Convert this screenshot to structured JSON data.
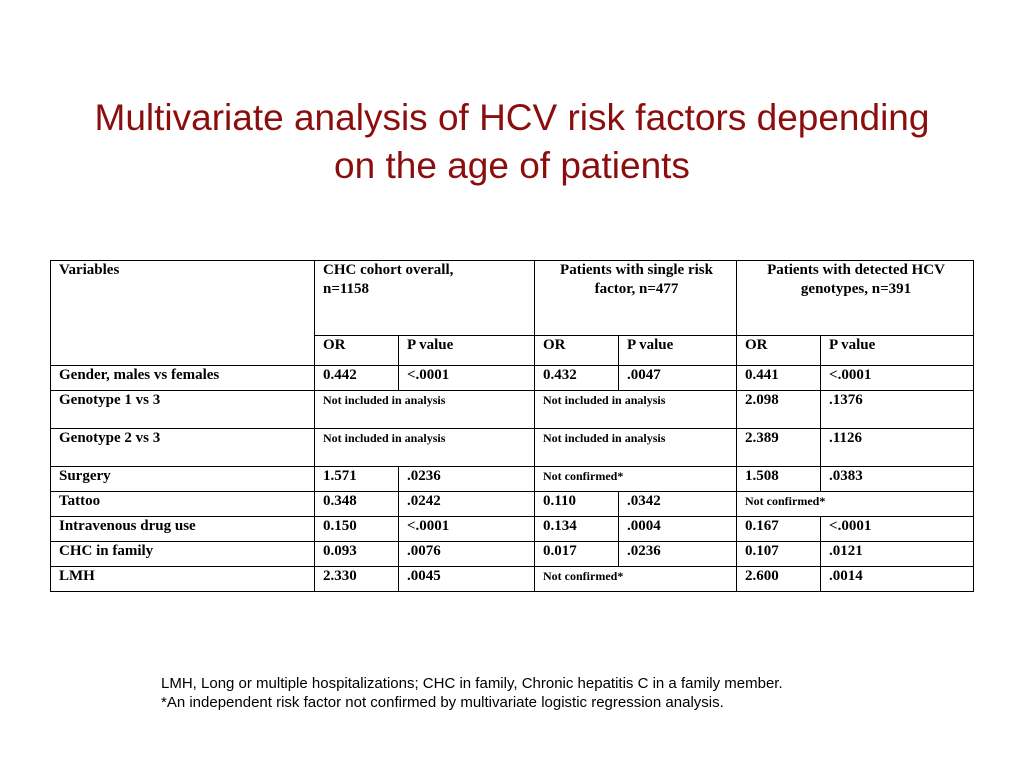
{
  "title": {
    "line1": "Multivariate analysis of HCV risk factors depending",
    "line2": "on the age of patients"
  },
  "table": {
    "headers": {
      "variables": "Variables",
      "group1": [
        "CHC cohort overall,",
        "n=1158"
      ],
      "group2": [
        "Patients with single risk",
        "factor, n=477"
      ],
      "group3": [
        "Patients with detected HCV",
        "genotypes, n=391"
      ]
    },
    "subheaders": [
      "OR",
      "P value",
      "OR",
      "P value",
      "OR",
      "P value"
    ],
    "rows": [
      {
        "label": "Gender, males vs females",
        "c1": "0.442",
        "c2": "<.0001",
        "c3": "0.432",
        "c4": ".0047",
        "c5": "0.441",
        "c6": "<.0001"
      },
      {
        "label": "Genotype 1 vs 3",
        "span1": "Not included in analysis",
        "span2": "Not included in analysis",
        "c5": "2.098",
        "c6": ".1376"
      },
      {
        "label": "Genotype 2 vs 3",
        "span1": "Not included in analysis",
        "span2": "Not included in analysis",
        "c5": "2.389",
        "c6": ".1126"
      },
      {
        "label": "Surgery",
        "c1": "1.571",
        "c2": ".0236",
        "span2": "Not confirmed*",
        "c5": "1.508",
        "c6": ".0383"
      },
      {
        "label": "Tattoo",
        "c1": "0.348",
        "c2": ".0242",
        "c3": "0.110",
        "c4": ".0342",
        "span3": "Not confirmed*"
      },
      {
        "label": "Intravenous drug use",
        "c1": "0.150",
        "c2": "<.0001",
        "c3": "0.134",
        "c4": ".0004",
        "c5": "0.167",
        "c6": "<.0001"
      },
      {
        "label": "CHC in family",
        "c1": "0.093",
        "c2": ".0076",
        "c3": "0.017",
        "c4": ".0236",
        "c5": "0.107",
        "c6": ".0121"
      },
      {
        "label": "LMH",
        "c1": "2.330",
        "c2": ".0045",
        "span2": "Not confirmed*",
        "c5": "2.600",
        "c6": ".0014"
      }
    ]
  },
  "footnotes": [
    "LMH, Long or multiple hospitalizations; CHC in family, Chronic hepatitis C in a family member.",
    "*An independent risk factor not confirmed by multivariate logistic regression analysis."
  ]
}
